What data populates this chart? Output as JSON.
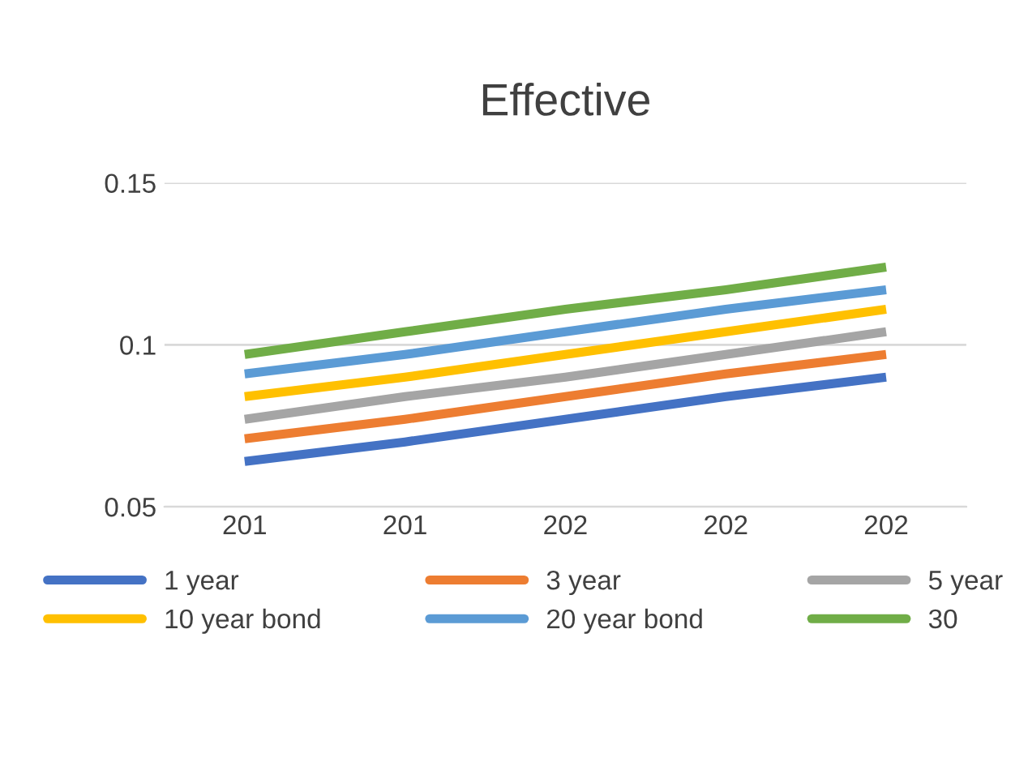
{
  "chart_data": {
    "type": "line",
    "title": "Effective",
    "categories": [
      "201",
      "201",
      "202",
      "202",
      "202"
    ],
    "series": [
      {
        "name": "1 year",
        "color": "#4472c4",
        "values": [
          0.064,
          0.07,
          0.077,
          0.084,
          0.09
        ]
      },
      {
        "name": "3 year",
        "color": "#ed7d31",
        "values": [
          0.071,
          0.077,
          0.084,
          0.091,
          0.097
        ]
      },
      {
        "name": "5 year",
        "color": "#a5a5a5",
        "values": [
          0.077,
          0.084,
          0.09,
          0.097,
          0.104
        ]
      },
      {
        "name": "10 year bond",
        "color": "#ffc000",
        "values": [
          0.084,
          0.09,
          0.097,
          0.104,
          0.111
        ]
      },
      {
        "name": "20 year bond",
        "color": "#5b9bd5",
        "values": [
          0.091,
          0.097,
          0.104,
          0.111,
          0.117
        ]
      },
      {
        "name": "30",
        "color": "#70ad47",
        "values": [
          0.097,
          0.104,
          0.111,
          0.117,
          0.124
        ]
      }
    ],
    "ylim": [
      0.05,
      0.15
    ],
    "yticks": [
      0.05,
      0.1,
      0.15
    ],
    "grid": "y",
    "legend": "bottom",
    "marker": "none",
    "line_style": "solid"
  }
}
